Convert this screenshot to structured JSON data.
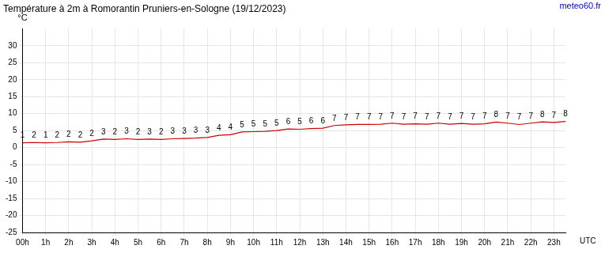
{
  "chart_data": {
    "type": "line",
    "title": "Température à 2m à Romorantin Pruniers-en-Sologne (19/12/2023)",
    "y_label": "°C",
    "x_label": "UTC",
    "source": "meteo60.fr",
    "categories": [
      "00h",
      null,
      "1h",
      null,
      "2h",
      null,
      "3h",
      null,
      "4h",
      null,
      "5h",
      null,
      "6h",
      null,
      "7h",
      null,
      "8h",
      null,
      "9h",
      null,
      "10h",
      null,
      "11h",
      null,
      "12h",
      null,
      "13h",
      null,
      "14h",
      null,
      "15h",
      null,
      "16h",
      null,
      "17h",
      null,
      "18h",
      null,
      "19h",
      null,
      "20h",
      null,
      "21h",
      null,
      "22h",
      null,
      "23h",
      null
    ],
    "values": [
      1.4,
      1.5,
      1.4,
      1.5,
      1.7,
      1.6,
      2.0,
      2.5,
      2.4,
      2.6,
      2.4,
      2.5,
      2.4,
      2.6,
      2.7,
      2.8,
      3.0,
      3.6,
      3.8,
      4.6,
      4.7,
      4.8,
      5.0,
      5.5,
      5.4,
      5.6,
      5.7,
      6.5,
      6.7,
      6.8,
      6.8,
      6.9,
      7.2,
      6.9,
      7.0,
      6.9,
      7.2,
      6.9,
      7.1,
      6.9,
      7.0,
      7.5,
      7.2,
      6.8,
      7.2,
      7.6,
      7.4,
      7.7
    ],
    "value_labels": [
      "1",
      "2",
      "1",
      "2",
      "2",
      "2",
      "2",
      "3",
      "2",
      "3",
      "2",
      "3",
      "2",
      "3",
      "3",
      "3",
      "3",
      "4",
      "4",
      "5",
      "5",
      "5",
      "5",
      "6",
      "5",
      "6",
      "6",
      "7",
      "7",
      "7",
      "7",
      "7",
      "7",
      "7",
      "7",
      "7",
      "7",
      "7",
      "7",
      "7",
      "7",
      "8",
      "7",
      "7",
      "7",
      "8",
      "7",
      "8"
    ],
    "color": "#cc0000",
    "marker": "none",
    "data_labels": true,
    "grid": true,
    "ylim": [
      -25,
      35
    ],
    "yticks": [
      -25,
      -20,
      -15,
      -10,
      -5,
      0,
      5,
      10,
      15,
      20,
      25,
      30
    ]
  }
}
